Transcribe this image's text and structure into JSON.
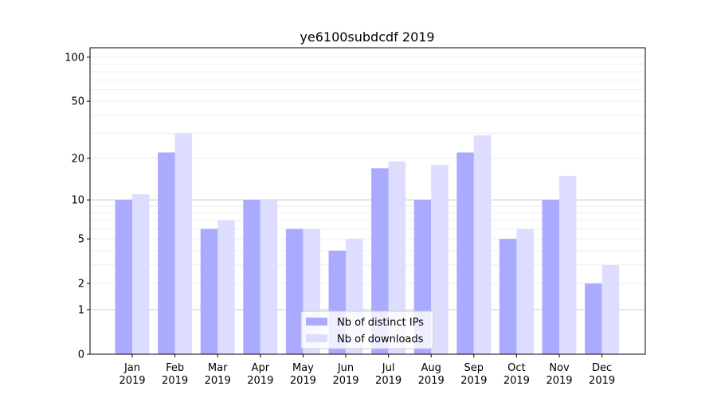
{
  "chart_data": {
    "type": "bar",
    "title": "ye6100subdcdf 2019",
    "xlabel": "",
    "ylabel": "",
    "yscale": "symlog (log10(1+y))",
    "ylim": [
      0,
      116
    ],
    "yticks": [
      0,
      1,
      2,
      5,
      10,
      20,
      50,
      100
    ],
    "ytick_labels": [
      "0",
      "1",
      "2",
      "5",
      "10",
      "20",
      "50",
      "100"
    ],
    "categories": [
      "Jan\n2019",
      "Feb\n2019",
      "Mar\n2019",
      "Apr\n2019",
      "May\n2019",
      "Jun\n2019",
      "Jul\n2019",
      "Aug\n2019",
      "Sep\n2019",
      "Oct\n2019",
      "Nov\n2019",
      "Dec\n2019"
    ],
    "category_months": [
      "Jan",
      "Feb",
      "Mar",
      "Apr",
      "May",
      "Jun",
      "Jul",
      "Aug",
      "Sep",
      "Oct",
      "Nov",
      "Dec"
    ],
    "category_year": "2019",
    "series": [
      {
        "name": "Nb of distinct IPs",
        "color": "#aaaaff",
        "values": [
          10,
          22,
          6,
          10,
          6,
          4,
          17,
          10,
          22,
          5,
          10,
          2
        ]
      },
      {
        "name": "Nb of downloads",
        "color": "#ddddff",
        "values": [
          11,
          30,
          7,
          10,
          6,
          5,
          19,
          18,
          29,
          6,
          15,
          3
        ]
      }
    ],
    "legend": "bottom-center",
    "grid": true
  }
}
